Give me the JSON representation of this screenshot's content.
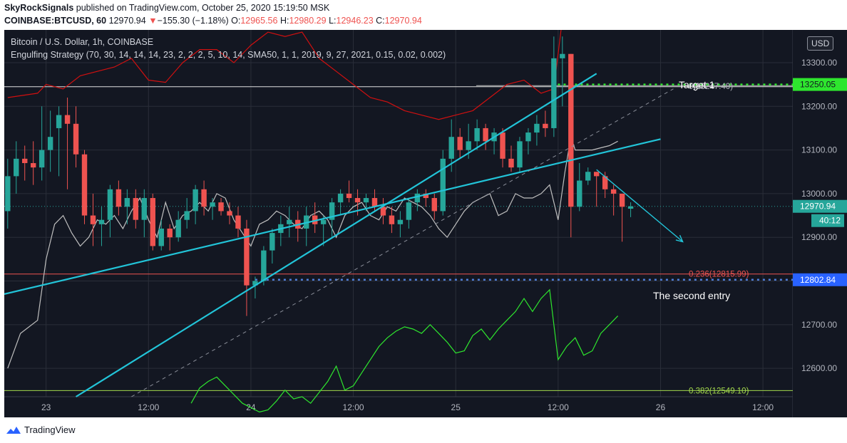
{
  "header": {
    "author": "SkyRockSignals",
    "published_text": " published on TradingView.com, October 25, 2020 15:19:50 MSK",
    "symbol": "COINBASE:BTCUSD, 60",
    "last_price": "12970.94",
    "change_arrow": "▼",
    "change": "−155.30 (−1.18%)",
    "o_label": "O:",
    "o_value": "12965.56",
    "h_label": "H:",
    "h_value": "12980.29",
    "l_label": "L:",
    "l_value": "12946.23",
    "c_label": "C:",
    "c_value": "12970.94"
  },
  "legend": {
    "line1": "Bitcoin / U.S. Dollar, 1h, COINBASE",
    "line2": "Engulfing Strategy (70, 30, 14, 14, 14, 23, 2, 2, 2, 5, 10, 14, SMA50, 1, 1, 2019, 9, 27, 2021, 0.15, 0.02, 0.002)"
  },
  "currency_button": "USD",
  "footer": {
    "brand": "TradingView"
  },
  "colors": {
    "background": "#131722",
    "grid": "#2a2e39",
    "candle_up": "#26a69a",
    "candle_down": "#ef5350",
    "trendline": "#22c4d8",
    "osc_green": "#2ee62e",
    "band_red": "#d01010",
    "white_line": "#bfbfbf",
    "fib_red": "#ef5350",
    "fib_green": "#a3d94c",
    "target_green": "#2ee62e",
    "entry_blue": "#4f7ed9"
  },
  "chart_data": {
    "type": "candlestick",
    "title": "Bitcoin / U.S. Dollar, 1h, COINBASE",
    "y_range": [
      12535,
      13375
    ],
    "y_ticks": [
      12600,
      12700,
      12800,
      12900,
      13000,
      13100,
      13200,
      13300
    ],
    "y_tick_labels": [
      "12600.00",
      "12700.00",
      "12800.00",
      "12900.00",
      "13000.00",
      "13100.00",
      "13200.00",
      "13300.00"
    ],
    "x_tick_labels": [
      "23",
      "12:00",
      "24",
      "12:00",
      "25",
      "12:00",
      "26",
      "12:00"
    ],
    "x_tick_hours": [
      0,
      12,
      24,
      36,
      48,
      60,
      72,
      84
    ],
    "x_range_hours": [
      -4.9,
      87.5
    ],
    "candles": [
      {
        "t": -4.5,
        "o": 12960,
        "h": 13080,
        "l": 12920,
        "c": 13040
      },
      {
        "t": -3.5,
        "o": 13040,
        "h": 13120,
        "l": 13000,
        "c": 13080
      },
      {
        "t": -2.5,
        "o": 13080,
        "h": 13110,
        "l": 13030,
        "c": 13070
      },
      {
        "t": -1.5,
        "o": 13070,
        "h": 13120,
        "l": 13020,
        "c": 13060
      },
      {
        "t": -0.5,
        "o": 13060,
        "h": 13200,
        "l": 13030,
        "c": 13100
      },
      {
        "t": 0.5,
        "o": 13100,
        "h": 13190,
        "l": 13050,
        "c": 13130
      },
      {
        "t": 1.5,
        "o": 13150,
        "h": 13200,
        "l": 13040,
        "c": 13180
      },
      {
        "t": 2.5,
        "o": 13180,
        "h": 13220,
        "l": 13010,
        "c": 13160
      },
      {
        "t": 3.5,
        "o": 13160,
        "h": 13200,
        "l": 13060,
        "c": 13090
      },
      {
        "t": 4.5,
        "o": 13090,
        "h": 13100,
        "l": 12930,
        "c": 12950
      },
      {
        "t": 5.5,
        "o": 12950,
        "h": 13000,
        "l": 12880,
        "c": 12930
      },
      {
        "t": 6.5,
        "o": 12930,
        "h": 12970,
        "l": 12880,
        "c": 12940
      },
      {
        "t": 7.5,
        "o": 12940,
        "h": 13020,
        "l": 12900,
        "c": 13010
      },
      {
        "t": 8.5,
        "o": 13010,
        "h": 13030,
        "l": 12950,
        "c": 12970
      },
      {
        "t": 9.5,
        "o": 12970,
        "h": 13010,
        "l": 12930,
        "c": 12990
      },
      {
        "t": 10.5,
        "o": 12990,
        "h": 13010,
        "l": 12920,
        "c": 12940
      },
      {
        "t": 11.5,
        "o": 12940,
        "h": 13010,
        "l": 12900,
        "c": 12990
      },
      {
        "t": 12.5,
        "o": 12990,
        "h": 13000,
        "l": 12870,
        "c": 12880
      },
      {
        "t": 13.5,
        "o": 12880,
        "h": 12940,
        "l": 12870,
        "c": 12920
      },
      {
        "t": 14.5,
        "o": 12920,
        "h": 12930,
        "l": 12870,
        "c": 12900
      },
      {
        "t": 15.5,
        "o": 12900,
        "h": 12960,
        "l": 12890,
        "c": 12940
      },
      {
        "t": 16.5,
        "o": 12940,
        "h": 12990,
        "l": 12920,
        "c": 12960
      },
      {
        "t": 17.5,
        "o": 12960,
        "h": 13020,
        "l": 12930,
        "c": 13010
      },
      {
        "t": 18.5,
        "o": 13010,
        "h": 13030,
        "l": 12950,
        "c": 12970
      },
      {
        "t": 19.5,
        "o": 12970,
        "h": 12990,
        "l": 12940,
        "c": 12980
      },
      {
        "t": 20.5,
        "o": 12980,
        "h": 12990,
        "l": 12950,
        "c": 12960
      },
      {
        "t": 21.5,
        "o": 12960,
        "h": 12980,
        "l": 12930,
        "c": 12950
      },
      {
        "t": 22.5,
        "o": 12950,
        "h": 12970,
        "l": 12900,
        "c": 12920
      },
      {
        "t": 23.5,
        "o": 12920,
        "h": 12940,
        "l": 12720,
        "c": 12790
      },
      {
        "t": 24.5,
        "o": 12790,
        "h": 12810,
        "l": 12760,
        "c": 12800
      },
      {
        "t": 25.5,
        "o": 12800,
        "h": 12880,
        "l": 12790,
        "c": 12870
      },
      {
        "t": 26.5,
        "o": 12870,
        "h": 12920,
        "l": 12840,
        "c": 12910
      },
      {
        "t": 27.5,
        "o": 12910,
        "h": 12950,
        "l": 12880,
        "c": 12930
      },
      {
        "t": 28.5,
        "o": 12930,
        "h": 12970,
        "l": 12900,
        "c": 12940
      },
      {
        "t": 29.5,
        "o": 12940,
        "h": 12960,
        "l": 12890,
        "c": 12920
      },
      {
        "t": 30.5,
        "o": 12920,
        "h": 12970,
        "l": 12880,
        "c": 12950
      },
      {
        "t": 31.5,
        "o": 12950,
        "h": 12980,
        "l": 12910,
        "c": 12930
      },
      {
        "t": 32.5,
        "o": 12930,
        "h": 12950,
        "l": 12880,
        "c": 12940
      },
      {
        "t": 33.5,
        "o": 12940,
        "h": 12990,
        "l": 12900,
        "c": 12980
      },
      {
        "t": 34.5,
        "o": 12980,
        "h": 13010,
        "l": 12950,
        "c": 13000
      },
      {
        "t": 35.5,
        "o": 13000,
        "h": 13030,
        "l": 12980,
        "c": 12990
      },
      {
        "t": 36.5,
        "o": 12990,
        "h": 13010,
        "l": 12950,
        "c": 12980
      },
      {
        "t": 37.5,
        "o": 12980,
        "h": 13000,
        "l": 12960,
        "c": 12990
      },
      {
        "t": 38.5,
        "o": 12990,
        "h": 13010,
        "l": 12960,
        "c": 12970
      },
      {
        "t": 39.5,
        "o": 12970,
        "h": 12990,
        "l": 12930,
        "c": 12950
      },
      {
        "t": 40.5,
        "o": 12950,
        "h": 12970,
        "l": 12910,
        "c": 12930
      },
      {
        "t": 41.5,
        "o": 12930,
        "h": 12960,
        "l": 12900,
        "c": 12940
      },
      {
        "t": 42.5,
        "o": 12940,
        "h": 12990,
        "l": 12920,
        "c": 12980
      },
      {
        "t": 43.5,
        "o": 12980,
        "h": 13010,
        "l": 12960,
        "c": 13000
      },
      {
        "t": 44.5,
        "o": 13000,
        "h": 13010,
        "l": 12970,
        "c": 12990
      },
      {
        "t": 45.5,
        "o": 12990,
        "h": 13000,
        "l": 12940,
        "c": 12960
      },
      {
        "t": 46.5,
        "o": 12960,
        "h": 13100,
        "l": 12950,
        "c": 13080
      },
      {
        "t": 47.5,
        "o": 13080,
        "h": 13170,
        "l": 13050,
        "c": 13130
      },
      {
        "t": 48.5,
        "o": 13130,
        "h": 13150,
        "l": 13080,
        "c": 13100
      },
      {
        "t": 49.5,
        "o": 13100,
        "h": 13160,
        "l": 13080,
        "c": 13120
      },
      {
        "t": 50.5,
        "o": 13120,
        "h": 13170,
        "l": 13100,
        "c": 13150
      },
      {
        "t": 51.5,
        "o": 13150,
        "h": 13160,
        "l": 13100,
        "c": 13120
      },
      {
        "t": 52.5,
        "o": 13120,
        "h": 13150,
        "l": 13090,
        "c": 13140
      },
      {
        "t": 53.5,
        "o": 13140,
        "h": 13150,
        "l": 13060,
        "c": 13080
      },
      {
        "t": 54.5,
        "o": 13080,
        "h": 13110,
        "l": 13050,
        "c": 13060
      },
      {
        "t": 55.5,
        "o": 13060,
        "h": 13130,
        "l": 13050,
        "c": 13120
      },
      {
        "t": 56.5,
        "o": 13120,
        "h": 13150,
        "l": 13090,
        "c": 13140
      },
      {
        "t": 57.5,
        "o": 13140,
        "h": 13180,
        "l": 13110,
        "c": 13160
      },
      {
        "t": 58.5,
        "o": 13160,
        "h": 13190,
        "l": 13130,
        "c": 13150
      },
      {
        "t": 59.5,
        "o": 13150,
        "h": 13360,
        "l": 13130,
        "c": 13310
      },
      {
        "t": 60.5,
        "o": 13310,
        "h": 13360,
        "l": 13200,
        "c": 13320
      },
      {
        "t": 61.5,
        "o": 13320,
        "h": 13320,
        "l": 12900,
        "c": 12970
      },
      {
        "t": 62.5,
        "o": 12970,
        "h": 13070,
        "l": 12960,
        "c": 13030
      },
      {
        "t": 63.5,
        "o": 13030,
        "h": 13060,
        "l": 13020,
        "c": 13050
      },
      {
        "t": 64.5,
        "o": 13050,
        "h": 13050,
        "l": 12970,
        "c": 13040
      },
      {
        "t": 65.5,
        "o": 13040,
        "h": 13050,
        "l": 12990,
        "c": 13010
      },
      {
        "t": 66.5,
        "o": 13010,
        "h": 13020,
        "l": 12950,
        "c": 13000
      },
      {
        "t": 67.5,
        "o": 13000,
        "h": 13000,
        "l": 12890,
        "c": 12970
      },
      {
        "t": 68.5,
        "o": 12965.56,
        "h": 12980.29,
        "l": 12946.23,
        "c": 12970.94
      }
    ],
    "band_line": {
      "t": [
        -4.5,
        -1,
        0,
        2,
        4,
        6,
        8,
        10,
        12,
        14,
        16,
        18,
        20,
        22,
        24,
        26,
        28,
        30,
        32,
        34,
        36,
        38,
        40,
        42,
        44,
        46,
        48,
        50,
        52,
        54,
        56,
        58,
        59.5,
        60.5
      ],
      "y": [
        13220,
        13230,
        13250,
        13240,
        13270,
        13280,
        13290,
        13310,
        13260,
        13255,
        13300,
        13330,
        13330,
        13300,
        13340,
        13370,
        13360,
        13370,
        13310,
        13280,
        13250,
        13220,
        13210,
        13190,
        13180,
        13170,
        13180,
        13190,
        13220,
        13250,
        13260,
        13230,
        13240,
        13400
      ]
    },
    "white_line": {
      "t": [
        -4.5,
        -3,
        -1,
        0,
        1,
        2,
        3,
        4,
        5,
        6,
        7,
        8,
        9,
        10,
        11,
        12,
        13,
        14,
        15,
        16,
        17,
        18,
        19,
        20,
        21,
        22,
        23,
        24,
        25,
        26,
        27,
        28,
        29,
        30,
        31,
        32,
        33,
        34,
        35,
        36,
        37,
        38,
        39,
        40,
        41,
        42,
        43,
        44,
        45,
        46,
        47,
        48,
        49,
        50,
        51,
        52,
        53,
        54,
        55,
        56,
        57,
        58,
        59,
        60,
        60.8,
        61.5,
        62,
        63,
        64,
        65,
        66,
        67
      ],
      "y": [
        12600,
        12680,
        12710,
        12850,
        12930,
        12950,
        12910,
        12880,
        12900,
        12940,
        12930,
        12950,
        12920,
        12960,
        12990,
        12940,
        12900,
        12980,
        12920,
        12950,
        12960,
        12980,
        12960,
        13000,
        12990,
        12940,
        12910,
        12880,
        12930,
        12940,
        12960,
        12950,
        12930,
        12920,
        12950,
        12960,
        12940,
        12900,
        12950,
        12970,
        12980,
        12950,
        12940,
        12970,
        12960,
        12990,
        12980,
        12970,
        12950,
        12920,
        12900,
        12930,
        12960,
        12980,
        12990,
        13000,
        12950,
        12960,
        13000,
        12990,
        12990,
        13000,
        13020,
        12940,
        13050,
        13130,
        13100,
        13100,
        13100,
        13105,
        13110,
        13120
      ]
    },
    "oscillator": {
      "t": [
        17,
        18,
        19,
        20,
        21,
        22,
        23,
        24,
        25,
        26,
        27,
        28,
        29,
        30,
        31,
        32,
        33,
        34,
        35,
        36,
        37,
        38,
        39,
        40,
        41,
        42,
        43,
        44,
        45,
        46,
        47,
        48,
        49,
        50,
        51,
        52,
        53,
        54,
        55,
        56,
        57,
        58,
        59,
        60,
        61,
        62,
        63,
        64,
        65,
        66,
        67
      ],
      "y": [
        12520,
        12555,
        12570,
        12580,
        12560,
        12540,
        12520,
        12510,
        12500,
        12505,
        12525,
        12550,
        12530,
        12535,
        12520,
        12545,
        12570,
        12605,
        12550,
        12560,
        12590,
        12620,
        12650,
        12670,
        12685,
        12695,
        12690,
        12680,
        12700,
        12680,
        12660,
        12635,
        12640,
        12675,
        12690,
        12665,
        12690,
        12710,
        12730,
        12760,
        12730,
        12760,
        12780,
        12620,
        12650,
        12670,
        12630,
        12640,
        12680,
        12700,
        12720
      ]
    },
    "trendlines": [
      {
        "t1": -4.9,
        "y1": 12770,
        "t2": 72,
        "y2": 13125
      },
      {
        "t1": 3.5,
        "y1": 12535,
        "t2": 64.5,
        "y2": 13275
      },
      {
        "t1": 10,
        "y1": 12535,
        "t2": 73.5,
        "y2": 13240,
        "dashed": true
      }
    ],
    "fib_levels": [
      {
        "label": "0(13247.40)",
        "value": 13247.4,
        "t_start": 50.4
      },
      {
        "label": "0.236(12815.99)",
        "value": 12815.99,
        "t_start": -4.9
      },
      {
        "label": "0.382(12549.10)",
        "value": 12549.1,
        "t_start": -4.9
      }
    ],
    "white_hline": 13245,
    "last_price_line": 12970.94,
    "target": {
      "label": "Target 1",
      "value": 13250.05,
      "t_start": 59.3
    },
    "entry": {
      "label": "The second entry",
      "value": 12802.84,
      "t_start": 24.5
    },
    "arrow": {
      "t1": 64.5,
      "y1": 13055,
      "t2": 74.6,
      "y2": 12890
    },
    "price_labels": {
      "target": "13250.05",
      "last": "12970.94",
      "countdown": "40:12",
      "entry": "12802.84"
    }
  }
}
